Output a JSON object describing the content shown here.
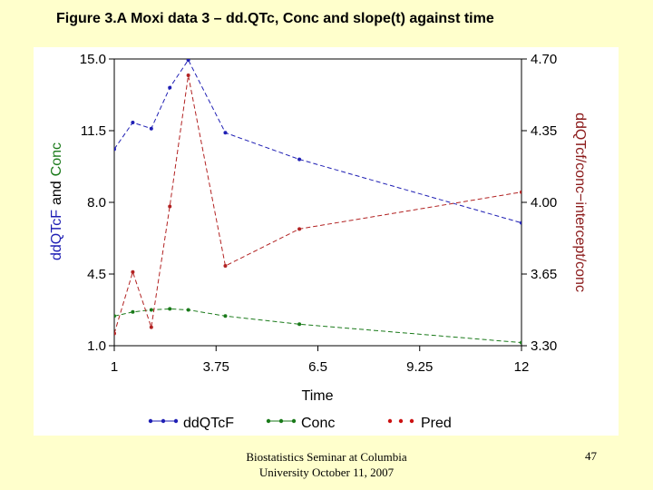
{
  "slide": {
    "title": "Figure 3.A Moxi data 3 – dd.QTc, Conc and slope(t) against time",
    "footer_line1": "Biostatistics Seminar at Columbia",
    "footer_line2": "University October 11, 2007",
    "page_number": "47"
  },
  "chart_data": {
    "type": "line",
    "title": "",
    "xlabel": "Time",
    "ylabel_left_part1": "ddQTcF",
    "ylabel_left_part2": "and",
    "ylabel_left_part3": "Conc",
    "ylabel_right": "ddQTcf/conc−intercept/conc",
    "xlim": [
      1,
      12
    ],
    "ylim_left": [
      1.0,
      15.0
    ],
    "ylim_right": [
      3.3,
      4.7
    ],
    "x_ticks": [
      "1",
      "3.75",
      "6.5",
      "9.25",
      "12"
    ],
    "y_left_ticks": [
      "1.0",
      "4.5",
      "8.0",
      "11.5",
      "15.0"
    ],
    "y_right_ticks": [
      "3.30",
      "3.65",
      "4.00",
      "4.35",
      "4.70"
    ],
    "grid": false,
    "legend_position": "bottom",
    "series": [
      {
        "name": "ddQTcF",
        "axis": "left",
        "color": "#1f1fb4",
        "x": [
          1,
          1.5,
          2,
          2.5,
          3,
          4,
          6,
          12
        ],
        "y": [
          10.6,
          11.9,
          11.6,
          13.6,
          14.95,
          11.4,
          10.1,
          7.0
        ]
      },
      {
        "name": "Conc",
        "axis": "left",
        "color": "#1a7a1a",
        "x": [
          1,
          1.5,
          2,
          2.5,
          3,
          4,
          6,
          12
        ],
        "y": [
          2.45,
          2.65,
          2.75,
          2.8,
          2.75,
          2.45,
          2.05,
          1.15
        ]
      },
      {
        "name": "Pred",
        "axis": "right",
        "color": "#b22222",
        "x": [
          1,
          1.5,
          2,
          2.5,
          3,
          4,
          6,
          12
        ],
        "y": [
          3.36,
          3.66,
          3.39,
          3.98,
          4.62,
          3.69,
          3.87,
          4.05
        ]
      }
    ]
  }
}
